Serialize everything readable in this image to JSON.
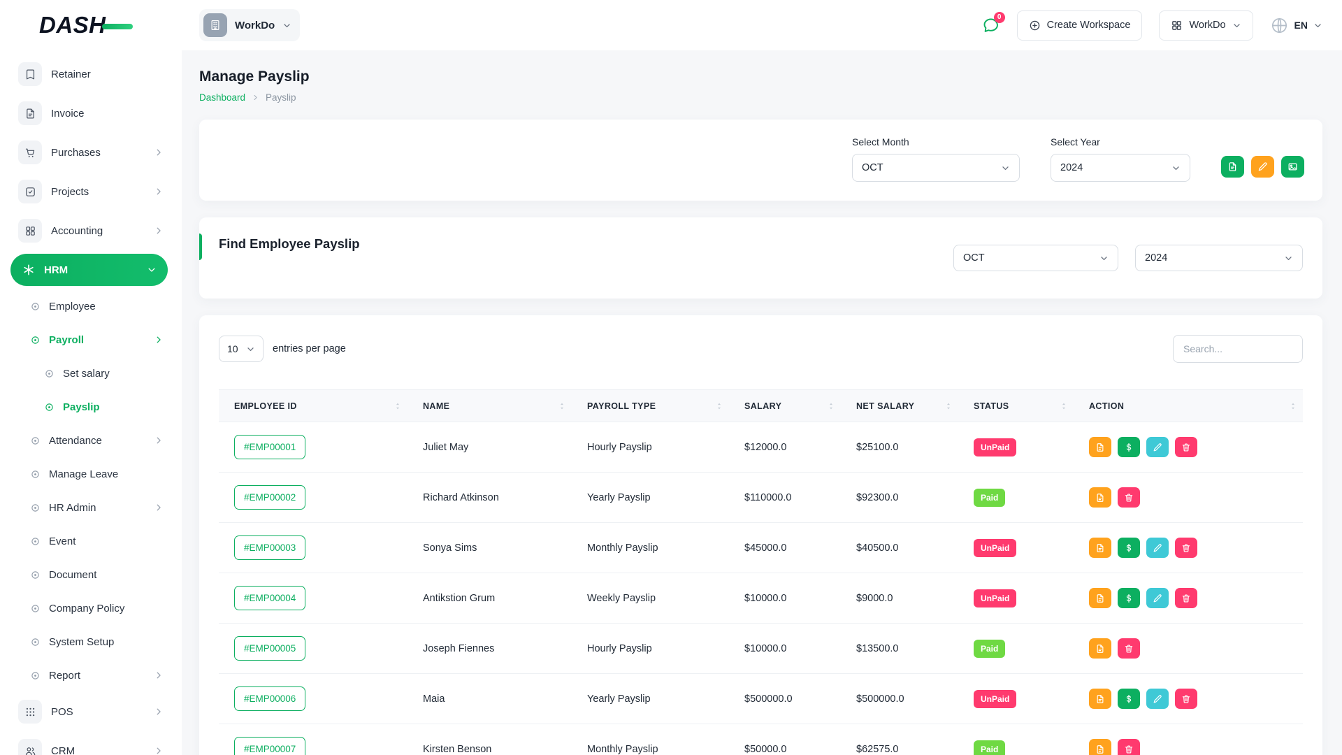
{
  "colors": {
    "primary": "#0caf60",
    "success": "#6fd943",
    "warning": "#ffa21d",
    "info": "#3ec9d6",
    "danger": "#ff3a6e",
    "action_colors": {
      "file": "#ffa21d",
      "dollar": "#0caf60",
      "pencil": "#3ec9d6",
      "trash": "#ff3a6e"
    }
  },
  "brand": {
    "logo_text": "DASH"
  },
  "header": {
    "workspace_name": "WorkDo",
    "chat_badge": "0",
    "create_workspace_label": "Create Workspace",
    "apps_button_label": "WorkDo",
    "language": "EN"
  },
  "sidebar": {
    "items": [
      {
        "label": "Retainer",
        "icon": "retainer",
        "level": 0
      },
      {
        "label": "Invoice",
        "icon": "invoice",
        "level": 0
      },
      {
        "label": "Purchases",
        "icon": "purchases",
        "level": 0,
        "chevron": "right"
      },
      {
        "label": "Projects",
        "icon": "projects",
        "level": 0,
        "chevron": "right"
      },
      {
        "label": "Accounting",
        "icon": "accounting",
        "level": 0,
        "chevron": "right"
      },
      {
        "label": "HRM",
        "icon": "hrm",
        "level": 0,
        "chevron": "down",
        "active": true
      },
      {
        "label": "Employee",
        "icon": "dot",
        "level": 1
      },
      {
        "label": "Payroll",
        "icon": "dot",
        "level": 1,
        "chevron": "right",
        "active_text": true
      },
      {
        "label": "Set salary",
        "icon": "dot",
        "level": 2
      },
      {
        "label": "Payslip",
        "icon": "dot",
        "level": 2,
        "active_text": true
      },
      {
        "label": "Attendance",
        "icon": "dot",
        "level": 1,
        "chevron": "right"
      },
      {
        "label": "Manage Leave",
        "icon": "dot",
        "level": 1
      },
      {
        "label": "HR Admin",
        "icon": "dot",
        "level": 1,
        "chevron": "right"
      },
      {
        "label": "Event",
        "icon": "dot",
        "level": 1
      },
      {
        "label": "Document",
        "icon": "dot",
        "level": 1
      },
      {
        "label": "Company Policy",
        "icon": "dot",
        "level": 1
      },
      {
        "label": "System Setup",
        "icon": "dot",
        "level": 1
      },
      {
        "label": "Report",
        "icon": "dot",
        "level": 1,
        "chevron": "right"
      },
      {
        "label": "POS",
        "icon": "pos",
        "level": 0,
        "chevron": "right"
      },
      {
        "label": "CRM",
        "icon": "crm",
        "level": 0,
        "chevron": "right"
      }
    ]
  },
  "page": {
    "title": "Manage Payslip",
    "breadcrumb": [
      "Dashboard",
      "Payslip"
    ]
  },
  "filters": {
    "select_month_label": "Select Month",
    "select_year_label": "Select Year",
    "month_value": "OCT",
    "year_value": "2024",
    "actions": [
      {
        "icon": "file",
        "color": "#0caf60"
      },
      {
        "icon": "pencil",
        "color": "#ffa21d"
      },
      {
        "icon": "image",
        "color": "#0caf60"
      }
    ]
  },
  "find_payslip": {
    "title": "Find Employee Payslip",
    "month_value": "OCT",
    "year_value": "2024"
  },
  "table": {
    "page_size": "10",
    "entries_label": "entries per page",
    "search_placeholder": "Search...",
    "columns": [
      "EMPLOYEE ID",
      "NAME",
      "PAYROLL TYPE",
      "SALARY",
      "NET SALARY",
      "STATUS",
      "ACTION"
    ],
    "rows": [
      {
        "employee_id": "#EMP00001",
        "name": "Juliet May",
        "payroll_type": "Hourly Payslip",
        "salary": "$12000.0",
        "net_salary": "$25100.0",
        "status": "UnPaid",
        "actions": [
          "file",
          "dollar",
          "pencil",
          "trash"
        ]
      },
      {
        "employee_id": "#EMP00002",
        "name": "Richard Atkinson",
        "payroll_type": "Yearly Payslip",
        "salary": "$110000.0",
        "net_salary": "$92300.0",
        "status": "Paid",
        "actions": [
          "file",
          "trash"
        ]
      },
      {
        "employee_id": "#EMP00003",
        "name": "Sonya Sims",
        "payroll_type": "Monthly Payslip",
        "salary": "$45000.0",
        "net_salary": "$40500.0",
        "status": "UnPaid",
        "actions": [
          "file",
          "dollar",
          "pencil",
          "trash"
        ]
      },
      {
        "employee_id": "#EMP00004",
        "name": "Antikstion Grum",
        "payroll_type": "Weekly Payslip",
        "salary": "$10000.0",
        "net_salary": "$9000.0",
        "status": "UnPaid",
        "actions": [
          "file",
          "dollar",
          "pencil",
          "trash"
        ]
      },
      {
        "employee_id": "#EMP00005",
        "name": "Joseph Fiennes",
        "payroll_type": "Hourly Payslip",
        "salary": "$10000.0",
        "net_salary": "$13500.0",
        "status": "Paid",
        "actions": [
          "file",
          "trash"
        ]
      },
      {
        "employee_id": "#EMP00006",
        "name": "Maia",
        "payroll_type": "Yearly Payslip",
        "salary": "$500000.0",
        "net_salary": "$500000.0",
        "status": "UnPaid",
        "actions": [
          "file",
          "dollar",
          "pencil",
          "trash"
        ]
      },
      {
        "employee_id": "#EMP00007",
        "name": "Kirsten Benson",
        "payroll_type": "Monthly Payslip",
        "salary": "$50000.0",
        "net_salary": "$62575.0",
        "status": "Paid",
        "actions": [
          "file",
          "trash"
        ]
      }
    ]
  }
}
